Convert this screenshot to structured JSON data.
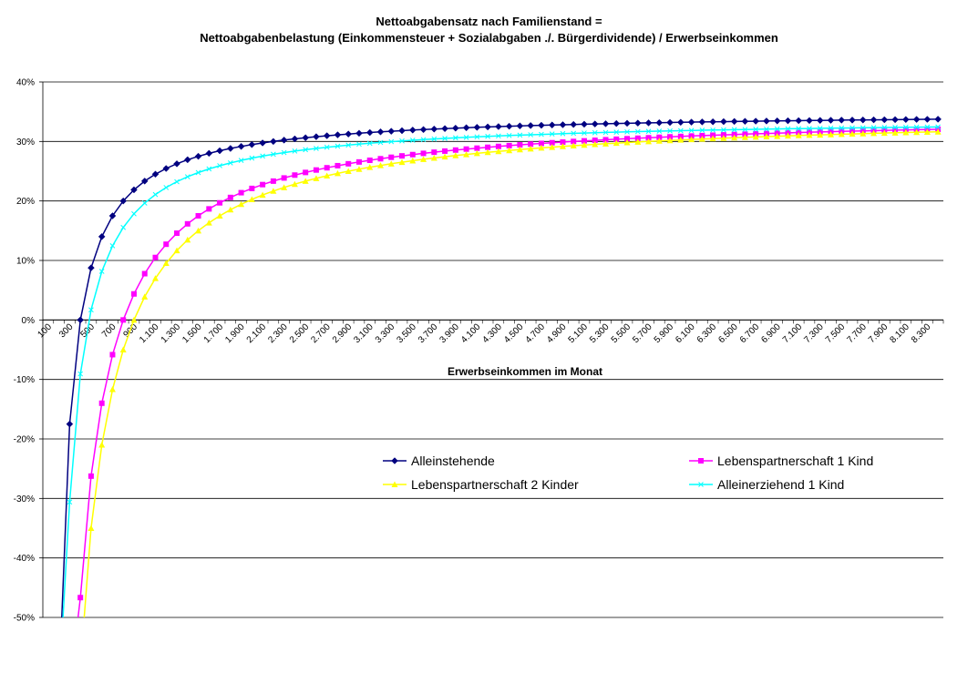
{
  "chart_data": {
    "type": "line",
    "title": "Nettoabgabensatz nach Familienstand =",
    "subtitle": "Nettoabgabenbelastung (Einkommensteuer + Sozialabgaben ./. Bürgerdividende) / Erwerbseinkommen",
    "xlabel": "Erwerbseinkommen im Monat",
    "ylabel": "",
    "ylim": [
      -0.5,
      0.4
    ],
    "grid": true,
    "yticks": [
      "-50%",
      "-40%",
      "-30%",
      "-20%",
      "-10%",
      "0%",
      "10%",
      "20%",
      "30%",
      "40%"
    ],
    "x_start": 100,
    "x_end": 8400,
    "x_step": 100,
    "xtick_labels": [
      "100",
      "300",
      "500",
      "700",
      "900",
      "1.100",
      "1.300",
      "1.500",
      "1.700",
      "1.900",
      "2.100",
      "2.300",
      "2.500",
      "2.700",
      "2.900",
      "3.100",
      "3.300",
      "3.500",
      "3.700",
      "3.900",
      "4.100",
      "4.300",
      "4.500",
      "4.700",
      "4.900",
      "5.100",
      "5.300",
      "5.500",
      "5.700",
      "5.900",
      "6.100",
      "6.300",
      "6.500",
      "6.700",
      "6.900",
      "7.100",
      "7.300",
      "7.500",
      "7.700",
      "7.900",
      "8.100",
      "8.300"
    ],
    "series": [
      {
        "name": "Alleinstehende",
        "color": "#000080",
        "marker": "diamond",
        "a": 0.35,
        "b": 300
      },
      {
        "name": "Lebenspartnerschaft 1 Kind",
        "color": "#FF00FF",
        "marker": "square",
        "a": 0.35,
        "b": 700
      },
      {
        "name": "Lebenspartnerschaft 2 Kinder",
        "color": "#FFFF00",
        "marker": "triangle",
        "a": 0.35,
        "b": 800
      },
      {
        "name": "Alleinerziehend 1 Kind",
        "color": "#00FFFF",
        "marker": "x",
        "a": 0.34,
        "b": 380
      }
    ],
    "legend_position": "inside-bottom"
  }
}
